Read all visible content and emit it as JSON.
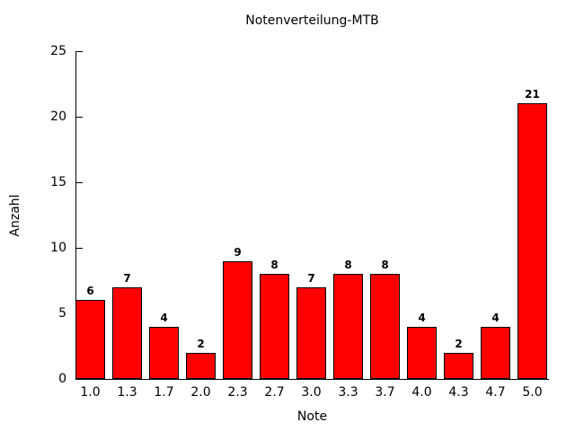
{
  "chart_data": {
    "type": "bar",
    "title": "Notenverteilung-MTB",
    "xlabel": "Note",
    "ylabel": "Anzahl",
    "categories": [
      "1.0",
      "1.3",
      "1.7",
      "2.0",
      "2.3",
      "2.7",
      "3.0",
      "3.3",
      "3.7",
      "4.0",
      "4.3",
      "4.7",
      "5.0"
    ],
    "values": [
      6,
      7,
      4,
      2,
      9,
      8,
      7,
      8,
      8,
      4,
      2,
      4,
      21
    ],
    "ylim": [
      0,
      25
    ],
    "yticks": [
      0,
      5,
      10,
      15,
      20,
      25
    ],
    "value_labels": [
      6,
      7,
      4,
      2,
      9,
      8,
      7,
      8,
      8,
      4,
      2,
      4,
      21
    ],
    "bar_color": "#ff0000",
    "bar_border_color": "#000000",
    "text_color": "#000000",
    "background_color": "#ffffff",
    "grid": false,
    "legend_position": "none"
  }
}
